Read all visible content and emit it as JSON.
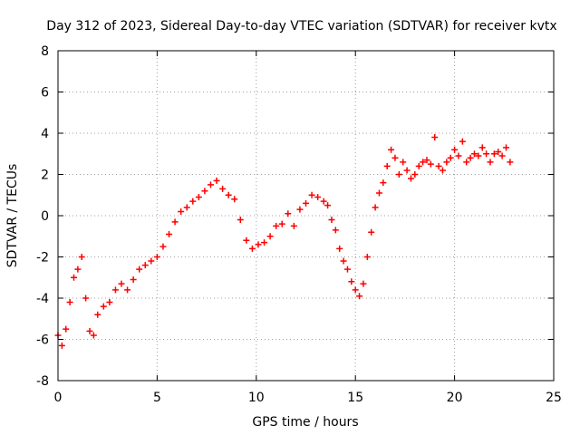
{
  "chart_data": {
    "type": "scatter",
    "title": "Day 312 of 2023, Sidereal Day-to-day VTEC variation (SDTVAR) for receiver kvtx",
    "xlabel": "GPS time / hours",
    "ylabel": "SDTVAR / TECUs",
    "xlim": [
      0,
      25
    ],
    "ylim": [
      -8,
      8
    ],
    "xticks": [
      "0",
      "5",
      "10",
      "15",
      "20",
      "25"
    ],
    "yticks": [
      "-8",
      "-6",
      "-4",
      "-2",
      "0",
      "2",
      "4",
      "6",
      "8"
    ],
    "grid": true,
    "marker": "plus",
    "color": "#ff0000",
    "series": [
      {
        "name": "SDTVAR",
        "points": [
          [
            0.0,
            -5.8
          ],
          [
            0.2,
            -6.3
          ],
          [
            0.4,
            -5.5
          ],
          [
            0.6,
            -4.2
          ],
          [
            0.8,
            -3.0
          ],
          [
            1.0,
            -2.6
          ],
          [
            1.2,
            -2.0
          ],
          [
            1.4,
            -4.0
          ],
          [
            1.6,
            -5.6
          ],
          [
            1.8,
            -5.8
          ],
          [
            2.0,
            -4.8
          ],
          [
            2.3,
            -4.4
          ],
          [
            2.6,
            -4.2
          ],
          [
            2.9,
            -3.6
          ],
          [
            3.2,
            -3.3
          ],
          [
            3.5,
            -3.6
          ],
          [
            3.8,
            -3.1
          ],
          [
            4.1,
            -2.6
          ],
          [
            4.4,
            -2.4
          ],
          [
            4.7,
            -2.2
          ],
          [
            5.0,
            -2.0
          ],
          [
            5.3,
            -1.5
          ],
          [
            5.6,
            -0.9
          ],
          [
            5.9,
            -0.3
          ],
          [
            6.2,
            0.2
          ],
          [
            6.5,
            0.4
          ],
          [
            6.8,
            0.7
          ],
          [
            7.1,
            0.9
          ],
          [
            7.4,
            1.2
          ],
          [
            7.7,
            1.5
          ],
          [
            8.0,
            1.7
          ],
          [
            8.3,
            1.3
          ],
          [
            8.6,
            1.0
          ],
          [
            8.9,
            0.8
          ],
          [
            9.2,
            -0.2
          ],
          [
            9.5,
            -1.2
          ],
          [
            9.8,
            -1.6
          ],
          [
            10.1,
            -1.4
          ],
          [
            10.4,
            -1.3
          ],
          [
            10.7,
            -1.0
          ],
          [
            11.0,
            -0.5
          ],
          [
            11.3,
            -0.4
          ],
          [
            11.6,
            0.1
          ],
          [
            11.9,
            -0.5
          ],
          [
            12.2,
            0.3
          ],
          [
            12.5,
            0.6
          ],
          [
            12.8,
            1.0
          ],
          [
            13.1,
            0.9
          ],
          [
            13.4,
            0.7
          ],
          [
            13.6,
            0.5
          ],
          [
            13.8,
            -0.2
          ],
          [
            14.0,
            -0.7
          ],
          [
            14.2,
            -1.6
          ],
          [
            14.4,
            -2.2
          ],
          [
            14.6,
            -2.6
          ],
          [
            14.8,
            -3.2
          ],
          [
            15.0,
            -3.6
          ],
          [
            15.2,
            -3.9
          ],
          [
            15.4,
            -3.3
          ],
          [
            15.6,
            -2.0
          ],
          [
            15.8,
            -0.8
          ],
          [
            16.0,
            0.4
          ],
          [
            16.2,
            1.1
          ],
          [
            16.4,
            1.6
          ],
          [
            16.6,
            2.4
          ],
          [
            16.8,
            3.2
          ],
          [
            17.0,
            2.8
          ],
          [
            17.2,
            2.0
          ],
          [
            17.4,
            2.6
          ],
          [
            17.6,
            2.2
          ],
          [
            17.8,
            1.8
          ],
          [
            18.0,
            2.0
          ],
          [
            18.2,
            2.4
          ],
          [
            18.4,
            2.6
          ],
          [
            18.6,
            2.7
          ],
          [
            18.8,
            2.5
          ],
          [
            19.0,
            3.8
          ],
          [
            19.2,
            2.4
          ],
          [
            19.4,
            2.2
          ],
          [
            19.6,
            2.6
          ],
          [
            19.8,
            2.8
          ],
          [
            20.0,
            3.2
          ],
          [
            20.2,
            2.9
          ],
          [
            20.4,
            3.6
          ],
          [
            20.6,
            2.6
          ],
          [
            20.8,
            2.8
          ],
          [
            21.0,
            3.0
          ],
          [
            21.2,
            2.9
          ],
          [
            21.4,
            3.3
          ],
          [
            21.6,
            3.0
          ],
          [
            21.8,
            2.6
          ],
          [
            22.0,
            3.0
          ],
          [
            22.2,
            3.1
          ],
          [
            22.4,
            2.9
          ],
          [
            22.6,
            3.3
          ],
          [
            22.8,
            2.6
          ]
        ]
      }
    ]
  }
}
